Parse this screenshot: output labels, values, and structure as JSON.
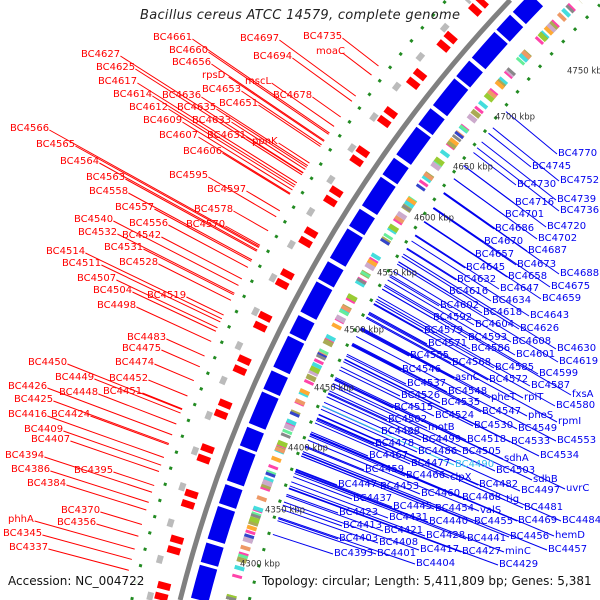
{
  "title": "Bacillus cereus ATCC 14579, complete genome",
  "footer": {
    "accession": "Accession: NC_004722",
    "topology": "Topology: circular; Length: 5,411,809 bp; Genes: 5,381"
  },
  "ticks": [
    "4750 kbp",
    "4700 kbp",
    "4650 kbp",
    "4600 kbp",
    "4550 kbp",
    "4500 kbp",
    "4450 kbp",
    "4400 kbp",
    "4350 kbp",
    "4300 kbp"
  ],
  "red_labels": [
    "BC4735",
    "moaC",
    "BC4661",
    "BC4697",
    "BC4627",
    "BC4660",
    "BC4694",
    "BC4625",
    "BC4656",
    "rpsD",
    "mscL",
    "BC4678",
    "BC4617",
    "BC4614",
    "BC4636",
    "BC4653",
    "BC4612",
    "BC4635",
    "BC4651",
    "BC4609",
    "BC4633",
    "BC4566",
    "BC4607",
    "BC4631",
    "ppnK",
    "BC4565",
    "BC4606",
    "BC4564",
    "BC4595",
    "BC4563",
    "BC4597",
    "BC4558",
    "BC4557",
    "BC4578",
    "BC4540",
    "BC4556",
    "BC4570",
    "BC4532",
    "BC4542",
    "BC4531",
    "BC4514",
    "BC4528",
    "BC4511",
    "BC4507",
    "BC4504",
    "BC4519",
    "BC4498",
    "BC4483",
    "BC4475",
    "BC4474",
    "BC4450",
    "BC4449",
    "BC4452",
    "BC4426",
    "BC4448",
    "BC4451",
    "BC4425",
    "BC4416",
    "BC4424",
    "BC4409",
    "BC4407",
    "BC4394",
    "BC4386",
    "BC4395",
    "BC4384",
    "BC4370",
    "phhA",
    "BC4356",
    "BC4345",
    "BC4337"
  ],
  "blue_labels": [
    "BC4770",
    "BC4745",
    "BC4752",
    "BC4730",
    "BC4739",
    "BC4716",
    "BC4736",
    "BC4701",
    "BC4720",
    "BC4686",
    "BC4702",
    "BC4670",
    "BC4687",
    "BC4657",
    "BC4673",
    "BC4688",
    "BC4645",
    "BC4658",
    "BC4675",
    "BC4632",
    "BC4647",
    "BC4659",
    "BC4616",
    "BC4634",
    "BC4602",
    "BC4618",
    "BC4643",
    "BC4592",
    "BC4604",
    "BC4626",
    "BC4579",
    "BC4593",
    "BC4608",
    "BC4571",
    "BC4630",
    "BC4586",
    "BC4601",
    "BC4619",
    "BC4555",
    "BC4568",
    "BC4585",
    "BC4599",
    "BC4546",
    "asnC",
    "BC4572",
    "BC4587",
    "fxsA",
    "BC4537",
    "BC4548",
    "pheT",
    "rplT",
    "BC4580",
    "BC4526",
    "BC4535",
    "BC4547",
    "pheS",
    "rpmI",
    "BC4515",
    "BC4524",
    "BC4530",
    "BC4549",
    "BC4502",
    "motB",
    "BC4553",
    "BC4488",
    "BC4499",
    "BC4518",
    "BC4533",
    "BC4478",
    "BC4486",
    "BC4505",
    "sdhA",
    "BC4534",
    "BC4467",
    "BC4477",
    "BC4490",
    "BC4503",
    "BC4459",
    "BC4466",
    "clpX",
    "sdhB",
    "BC4482",
    "uvrC",
    "BC4447",
    "BC4453",
    "BC4497",
    "BC4460",
    "BC4468",
    "tig",
    "BC4437",
    "BC4481",
    "BC4445",
    "BC4454",
    "valS",
    "BC4423",
    "BC4431",
    "BC4469",
    "BC4484",
    "BC4440",
    "BC4455",
    "BC4413",
    "BC4421",
    "BC4428",
    "BC4441",
    "BC4456",
    "hemD",
    "BC4403",
    "BC4408",
    "BC4417",
    "BC4427",
    "minC",
    "BC4457",
    "BC4393",
    "BC4401",
    "BC4404",
    "BC4429"
  ],
  "highlight_label": "BC4490",
  "colors": {
    "forward": "#ff0000",
    "reverse": "#0000ee",
    "highlight": "#33bbee",
    "backbone": "#808080",
    "rna": "#228b22"
  }
}
